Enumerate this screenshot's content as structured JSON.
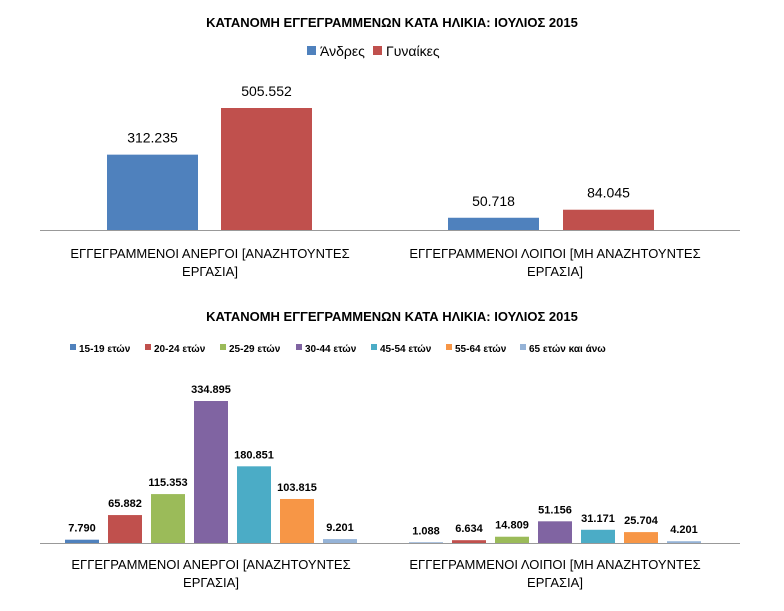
{
  "chart_data": [
    {
      "type": "bar",
      "title": "ΚΑΤΑΝΟΜΗ ΕΓΓΕΓΡΑΜΜΕΝΩΝ ΚΑΤΑ ΗΛΙΚΙΑ: ΙΟΥΛΙΟΣ 2015",
      "categories": [
        [
          "ΕΓΓΕΓΡΑΜΜΕΝΟΙ ΑΝΕΡΓΟΙ [ΑΝΑΖΗΤΟΥΝΤΕΣ",
          "ΕΡΓΑΣΙΑ]"
        ],
        [
          "ΕΓΓΕΓΡΑΜΜΕΝΟΙ ΛΟΙΠΟΙ [ΜΗ ΑΝΑΖΗΤΟΥΝΤΕΣ",
          "ΕΡΓΑΣΙΑ]"
        ]
      ],
      "legend_position": "top",
      "series": [
        {
          "name": "Άνδρες",
          "color": "#4F81BD",
          "values": [
            312235,
            50718
          ],
          "labels": [
            "312.235",
            "50.718"
          ]
        },
        {
          "name": "Γυναίκες",
          "color": "#C0504D",
          "values": [
            505552,
            84045
          ],
          "labels": [
            "505.552",
            "84.045"
          ]
        }
      ]
    },
    {
      "type": "bar",
      "title": "ΚΑΤΑΝΟΜΗ ΕΓΓΕΓΡΑΜΜΕΝΩΝ ΚΑΤΑ ΗΛΙΚΙΑ: ΙΟΥΛΙΟΣ 2015",
      "categories": [
        [
          "ΕΓΓΕΓΡΑΜΜΕΝΟΙ ΑΝΕΡΓΟΙ [ΑΝΑΖΗΤΟΥΝΤΕΣ",
          "ΕΡΓΑΣΙΑ]"
        ],
        [
          "ΕΓΓΕΓΡΑΜΜΕΝΟΙ ΛΟΙΠΟΙ [ΜΗ ΑΝΑΖΗΤΟΥΝΤΕΣ",
          "ΕΡΓΑΣΙΑ]"
        ]
      ],
      "legend_position": "top",
      "series": [
        {
          "name": "15-19 ετών",
          "color": "#4F81BD",
          "values": [
            7790,
            1088
          ],
          "labels": [
            "7.790",
            "1.088"
          ]
        },
        {
          "name": "20-24 ετών",
          "color": "#C0504D",
          "values": [
            65882,
            6634
          ],
          "labels": [
            "65.882",
            "6.634"
          ]
        },
        {
          "name": "25-29 ετών",
          "color": "#9BBB59",
          "values": [
            115353,
            14809
          ],
          "labels": [
            "115.353",
            "14.809"
          ]
        },
        {
          "name": "30-44 ετών",
          "color": "#8064A2",
          "values": [
            334895,
            51156
          ],
          "labels": [
            "334.895",
            "51.156"
          ]
        },
        {
          "name": "45-54 ετών",
          "color": "#4BACC6",
          "values": [
            180851,
            31171
          ],
          "labels": [
            "180.851",
            "31.171"
          ]
        },
        {
          "name": "55-64 ετών",
          "color": "#F79646",
          "values": [
            103815,
            25704
          ],
          "labels": [
            "103.815",
            "25.704"
          ]
        },
        {
          "name": "65 ετών και άνω",
          "color": "#95B3D7",
          "values": [
            9201,
            4201
          ],
          "labels": [
            "9.201",
            "4.201"
          ]
        }
      ]
    }
  ]
}
